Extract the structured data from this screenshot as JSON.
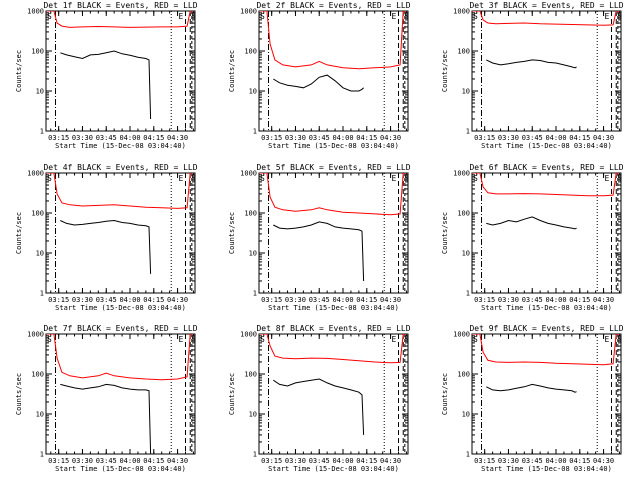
{
  "chart_data": {
    "type": "line",
    "x_tick_labels": [
      "03:15",
      "03:30",
      "03:45",
      "04:00",
      "04:15",
      "04:30"
    ],
    "x_tick_times": [
      "03:15",
      "03:30",
      "03:45",
      "04:00",
      "04:15",
      "04:30"
    ],
    "xlim": [
      "03:07",
      "04:41"
    ],
    "ylim": [
      1,
      1000
    ],
    "y_scale": "log",
    "y_tick_labels": [
      "1",
      "10",
      "100",
      "1000"
    ],
    "ylabel": "Counts/sec",
    "xlabel": "Start Time (15-Dec-08 03:04:40)",
    "colors": {
      "events": "#000000",
      "lld": "#ff0000"
    },
    "legend_text": "BLACK = Events, RED = LLD",
    "event_markers": {
      "start": "S",
      "end": "E",
      "s2": "S"
    },
    "vlines": {
      "dashdot_start": "03:13",
      "dotted_end": "04:26",
      "dashed_1": "04:35",
      "dashed_2": "04:38",
      "dashed_3": "04:39"
    },
    "panels": [
      {
        "title": "Det 1f BLACK = Events, RED = LLD",
        "series": [
          {
            "key": "events",
            "x": [
              "03:16",
              "03:20",
              "03:25",
              "03:30",
              "03:35",
              "03:40",
              "03:45",
              "03:50",
              "03:55",
              "04:00",
              "04:05",
              "04:10",
              "04:12",
              "04:13"
            ],
            "y": [
              90,
              80,
              72,
              65,
              80,
              82,
              90,
              100,
              85,
              78,
              70,
              65,
              60,
              2
            ]
          },
          {
            "key": "lld",
            "x": [
              "03:07",
              "03:12",
              "03:14",
              "03:17",
              "03:22",
              "03:30",
              "03:40",
              "03:50",
              "04:00",
              "04:10",
              "04:20",
              "04:30",
              "04:36",
              "04:38",
              "04:40"
            ],
            "y": [
              1000,
              1000,
              500,
              420,
              390,
              400,
              410,
              400,
              390,
              395,
              400,
              400,
              420,
              1000,
              1000
            ]
          }
        ]
      },
      {
        "title": "Det 2f BLACK = Events, RED = LLD",
        "series": [
          {
            "key": "events",
            "x": [
              "03:16",
              "03:20",
              "03:25",
              "03:30",
              "03:35",
              "03:40",
              "03:45",
              "03:50",
              "03:55",
              "04:00",
              "04:05",
              "04:10",
              "04:12",
              "04:13"
            ],
            "y": [
              20,
              16,
              14,
              13,
              12,
              15,
              22,
              25,
              18,
              12,
              10,
              10,
              11,
              12
            ]
          },
          {
            "key": "lld",
            "x": [
              "03:07",
              "03:12",
              "03:14",
              "03:17",
              "03:22",
              "03:30",
              "03:40",
              "03:45",
              "03:50",
              "04:00",
              "04:10",
              "04:20",
              "04:30",
              "04:36",
              "04:38",
              "04:40"
            ],
            "y": [
              1000,
              1000,
              150,
              60,
              45,
              40,
              45,
              55,
              45,
              38,
              36,
              38,
              40,
              45,
              1000,
              1000
            ]
          }
        ]
      },
      {
        "title": "Det 3f BLACK = Events, RED = LLD",
        "series": [
          {
            "key": "events",
            "x": [
              "03:16",
              "03:20",
              "03:25",
              "03:30",
              "03:35",
              "03:40",
              "03:45",
              "03:50",
              "03:55",
              "04:00",
              "04:05",
              "04:10",
              "04:12",
              "04:13"
            ],
            "y": [
              60,
              50,
              45,
              48,
              52,
              55,
              60,
              58,
              52,
              50,
              45,
              40,
              38,
              40
            ]
          },
          {
            "key": "lld",
            "x": [
              "03:07",
              "03:12",
              "03:14",
              "03:17",
              "03:22",
              "03:30",
              "03:40",
              "03:50",
              "04:00",
              "04:10",
              "04:20",
              "04:30",
              "04:36",
              "04:38",
              "04:40"
            ],
            "y": [
              1000,
              1000,
              600,
              500,
              480,
              490,
              500,
              480,
              470,
              460,
              450,
              440,
              450,
              1000,
              1000
            ]
          }
        ]
      },
      {
        "title": "Det 4f BLACK = Events, RED = LLD",
        "series": [
          {
            "key": "events",
            "x": [
              "03:16",
              "03:20",
              "03:25",
              "03:30",
              "03:35",
              "03:40",
              "03:45",
              "03:50",
              "03:55",
              "04:00",
              "04:05",
              "04:10",
              "04:12",
              "04:13"
            ],
            "y": [
              65,
              55,
              50,
              52,
              55,
              58,
              62,
              65,
              58,
              55,
              50,
              48,
              45,
              3
            ]
          },
          {
            "key": "lld",
            "x": [
              "03:07",
              "03:12",
              "03:14",
              "03:17",
              "03:22",
              "03:30",
              "03:40",
              "03:50",
              "04:00",
              "04:10",
              "04:20",
              "04:30",
              "04:36",
              "04:38",
              "04:40"
            ],
            "y": [
              1000,
              1000,
              300,
              180,
              160,
              150,
              155,
              160,
              150,
              140,
              135,
              130,
              135,
              1000,
              1000
            ]
          }
        ]
      },
      {
        "title": "Det 5f BLACK = Events, RED = LLD",
        "series": [
          {
            "key": "events",
            "x": [
              "03:16",
              "03:20",
              "03:25",
              "03:30",
              "03:35",
              "03:40",
              "03:45",
              "03:50",
              "03:55",
              "04:00",
              "04:05",
              "04:10",
              "04:12",
              "04:13"
            ],
            "y": [
              50,
              42,
              40,
              42,
              45,
              50,
              60,
              55,
              45,
              42,
              40,
              38,
              35,
              2
            ]
          },
          {
            "key": "lld",
            "x": [
              "03:07",
              "03:12",
              "03:14",
              "03:17",
              "03:22",
              "03:30",
              "03:40",
              "03:45",
              "03:50",
              "04:00",
              "04:10",
              "04:20",
              "04:30",
              "04:36",
              "04:38",
              "04:40"
            ],
            "y": [
              1000,
              1000,
              250,
              140,
              120,
              110,
              120,
              135,
              120,
              105,
              100,
              95,
              90,
              95,
              1000,
              1000
            ]
          }
        ]
      },
      {
        "title": "Det 6f BLACK = Events, RED = LLD",
        "series": [
          {
            "key": "events",
            "x": [
              "03:16",
              "03:20",
              "03:25",
              "03:30",
              "03:35",
              "03:40",
              "03:45",
              "03:50",
              "03:55",
              "04:00",
              "04:05",
              "04:10",
              "04:12",
              "04:13"
            ],
            "y": [
              55,
              50,
              55,
              65,
              60,
              70,
              80,
              65,
              55,
              50,
              45,
              42,
              40,
              42
            ]
          },
          {
            "key": "lld",
            "x": [
              "03:07",
              "03:12",
              "03:14",
              "03:17",
              "03:22",
              "03:30",
              "03:40",
              "03:50",
              "04:00",
              "04:10",
              "04:20",
              "04:30",
              "04:36",
              "04:38",
              "04:40"
            ],
            "y": [
              1000,
              1000,
              450,
              320,
              300,
              300,
              305,
              300,
              290,
              280,
              270,
              270,
              280,
              1000,
              1000
            ]
          }
        ]
      },
      {
        "title": "Det 7f BLACK = Events, RED = LLD",
        "series": [
          {
            "key": "events",
            "x": [
              "03:16",
              "03:20",
              "03:25",
              "03:30",
              "03:35",
              "03:40",
              "03:45",
              "03:50",
              "03:55",
              "04:00",
              "04:05",
              "04:10",
              "04:12",
              "04:13"
            ],
            "y": [
              55,
              50,
              45,
              42,
              45,
              48,
              55,
              52,
              45,
              42,
              40,
              40,
              38,
              1
            ]
          },
          {
            "key": "lld",
            "x": [
              "03:07",
              "03:12",
              "03:14",
              "03:17",
              "03:22",
              "03:30",
              "03:40",
              "03:45",
              "03:50",
              "04:00",
              "04:10",
              "04:20",
              "04:30",
              "04:36",
              "04:38",
              "04:40"
            ],
            "y": [
              1000,
              1000,
              250,
              110,
              90,
              80,
              90,
              105,
              90,
              80,
              75,
              72,
              75,
              85,
              1000,
              1000
            ]
          }
        ]
      },
      {
        "title": "Det 8f BLACK = Events, RED = LLD",
        "series": [
          {
            "key": "events",
            "x": [
              "03:16",
              "03:20",
              "03:25",
              "03:30",
              "03:35",
              "03:40",
              "03:45",
              "03:50",
              "03:55",
              "04:00",
              "04:05",
              "04:10",
              "04:12",
              "04:13"
            ],
            "y": [
              70,
              55,
              50,
              60,
              65,
              70,
              75,
              60,
              50,
              45,
              40,
              35,
              30,
              3
            ]
          },
          {
            "key": "lld",
            "x": [
              "03:07",
              "03:12",
              "03:14",
              "03:17",
              "03:22",
              "03:30",
              "03:40",
              "03:50",
              "04:00",
              "04:10",
              "04:20",
              "04:30",
              "04:36",
              "04:38",
              "04:40"
            ],
            "y": [
              1000,
              1000,
              500,
              280,
              250,
              240,
              250,
              245,
              230,
              215,
              200,
              190,
              195,
              1000,
              1000
            ]
          }
        ]
      },
      {
        "title": "Det 9f BLACK = Events, RED = LLD",
        "series": [
          {
            "key": "events",
            "x": [
              "03:16",
              "03:20",
              "03:25",
              "03:30",
              "03:35",
              "03:40",
              "03:45",
              "03:50",
              "03:55",
              "04:00",
              "04:05",
              "04:10",
              "04:12",
              "04:13"
            ],
            "y": [
              48,
              40,
              38,
              40,
              44,
              48,
              55,
              50,
              45,
              42,
              40,
              38,
              35,
              36
            ]
          },
          {
            "key": "lld",
            "x": [
              "03:07",
              "03:12",
              "03:14",
              "03:17",
              "03:22",
              "03:30",
              "03:40",
              "03:50",
              "04:00",
              "04:10",
              "04:20",
              "04:30",
              "04:36",
              "04:38",
              "04:40"
            ],
            "y": [
              1000,
              1000,
              350,
              220,
              200,
              195,
              200,
              195,
              185,
              180,
              175,
              170,
              180,
              1000,
              1000
            ]
          }
        ]
      }
    ]
  }
}
